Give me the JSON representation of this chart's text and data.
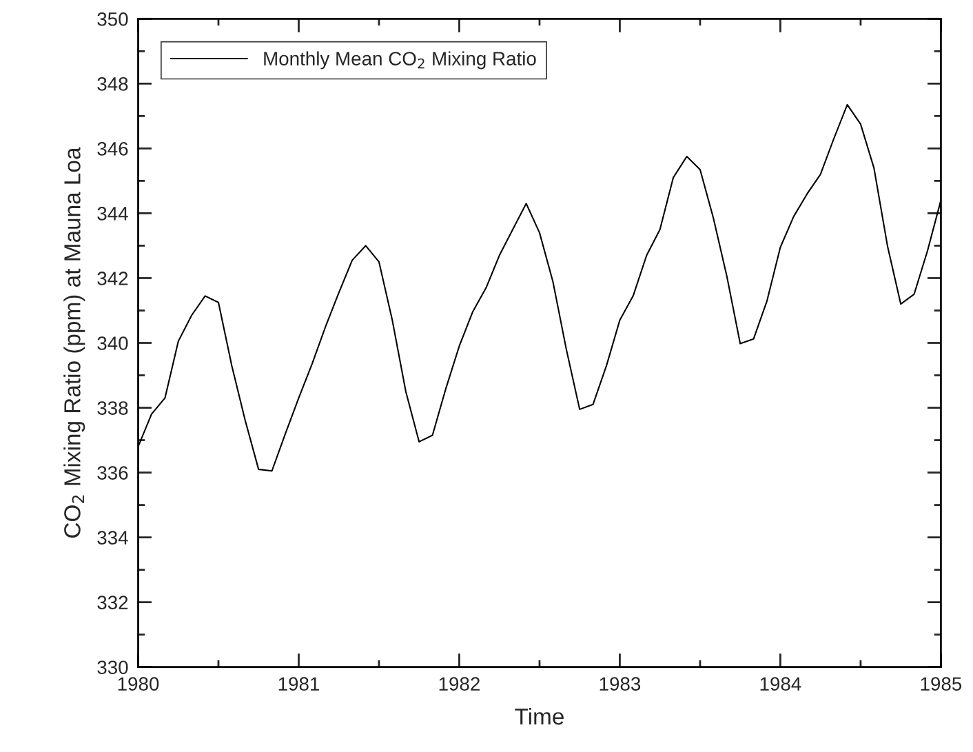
{
  "chart_data": {
    "type": "line",
    "xlabel": "Time",
    "ylabel": "CO$_{2}$ Mixing Ratio (ppm) at Mauna Loa",
    "x": [
      1980.0,
      1980.083,
      1980.167,
      1980.25,
      1980.333,
      1980.417,
      1980.5,
      1980.583,
      1980.667,
      1980.75,
      1980.833,
      1980.917,
      1981.0,
      1981.083,
      1981.167,
      1981.25,
      1981.333,
      1981.417,
      1981.5,
      1981.583,
      1981.667,
      1981.75,
      1981.833,
      1981.917,
      1982.0,
      1982.083,
      1982.167,
      1982.25,
      1982.333,
      1982.417,
      1982.5,
      1982.583,
      1982.667,
      1982.75,
      1982.833,
      1982.917,
      1983.0,
      1983.083,
      1983.167,
      1983.25,
      1983.333,
      1983.417,
      1983.5,
      1983.583,
      1983.667,
      1983.75,
      1983.833,
      1983.917,
      1984.0,
      1984.083,
      1984.167,
      1984.25,
      1984.333,
      1984.417,
      1984.5,
      1984.583,
      1984.667,
      1984.75,
      1984.833,
      1984.917,
      1985.0
    ],
    "series": [
      {
        "name": "Monthly Mean CO$_{2}$ Mixing Ratio",
        "color": "#000000",
        "values": [
          336.8,
          337.8,
          338.3,
          340.05,
          340.85,
          341.45,
          341.25,
          339.3,
          337.6,
          336.1,
          336.05,
          337.2,
          338.3,
          339.35,
          340.5,
          341.55,
          342.55,
          343.0,
          342.5,
          340.7,
          338.5,
          336.95,
          337.15,
          338.6,
          339.9,
          340.95,
          341.7,
          342.7,
          343.5,
          344.3,
          343.4,
          341.9,
          339.8,
          337.95,
          338.1,
          339.3,
          340.7,
          341.45,
          342.7,
          343.5,
          345.1,
          345.75,
          345.35,
          343.85,
          342.05,
          339.98,
          340.12,
          341.3,
          342.95,
          343.9,
          344.6,
          345.2,
          346.3,
          347.35,
          346.75,
          345.4,
          343.0,
          341.2,
          341.5,
          342.85,
          344.4
        ]
      }
    ],
    "xlim": [
      1980,
      1985
    ],
    "xticks": [
      1980,
      {
        "value": 1980.5,
        "label": null
      },
      1981,
      {
        "value": 1981.5,
        "label": null
      },
      1982,
      {
        "value": 1982.5,
        "label": null
      },
      1983,
      {
        "value": 1983.5,
        "label": null
      },
      1984,
      {
        "value": 1984.5,
        "label": null
      },
      1985
    ],
    "ylim": [
      330,
      350
    ],
    "yticks": [
      330,
      {
        "value": 331,
        "label": null
      },
      332,
      {
        "value": 333,
        "label": null
      },
      334,
      {
        "value": 335,
        "label": null
      },
      336,
      {
        "value": 337,
        "label": null
      },
      338,
      {
        "value": 339,
        "label": null
      },
      340,
      {
        "value": 341,
        "label": null
      },
      342,
      {
        "value": 343,
        "label": null
      },
      344,
      {
        "value": 345,
        "label": null
      },
      346,
      {
        "value": 347,
        "label": null
      },
      348,
      {
        "value": 349,
        "label": null
      },
      350
    ],
    "legend": "top left",
    "grid": false,
    "marker": "none",
    "line_style": "solid"
  }
}
